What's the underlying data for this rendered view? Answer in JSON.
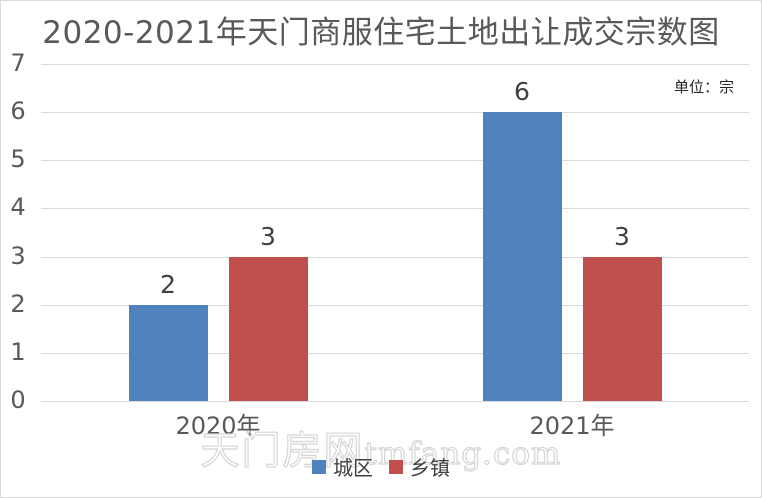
{
  "title": "2020-2021年天门商服住宅土地出让成交宗数图",
  "unit_label": "单位：宗",
  "watermark": {
    "cjk": "天门房网",
    "latin": "tmfang.com"
  },
  "chart_data": {
    "type": "bar",
    "title": "2020-2021年天门商服住宅土地出让成交宗数图",
    "unit": "宗",
    "categories": [
      "2020年",
      "2021年"
    ],
    "series": [
      {
        "name": "城区",
        "color": "#4F81BD",
        "values": [
          2,
          6
        ]
      },
      {
        "name": "乡镇",
        "color": "#C0504D",
        "values": [
          3,
          3
        ]
      }
    ],
    "yticks": [
      0,
      1,
      2,
      3,
      4,
      5,
      6,
      7
    ],
    "ylim": [
      0,
      7
    ],
    "ytick_interval": 1,
    "grid": true,
    "data_labels": true,
    "legend_position": "bottom"
  },
  "colors": {
    "series_urban": "#4F81BD",
    "series_township": "#C0504D",
    "gridline": "#D9D9D9",
    "axis_text": "#595959",
    "data_label_text": "#404040",
    "frame_border": "#D9D9D9",
    "watermark": "#D6D6D6",
    "background": "#FFFFFF"
  }
}
